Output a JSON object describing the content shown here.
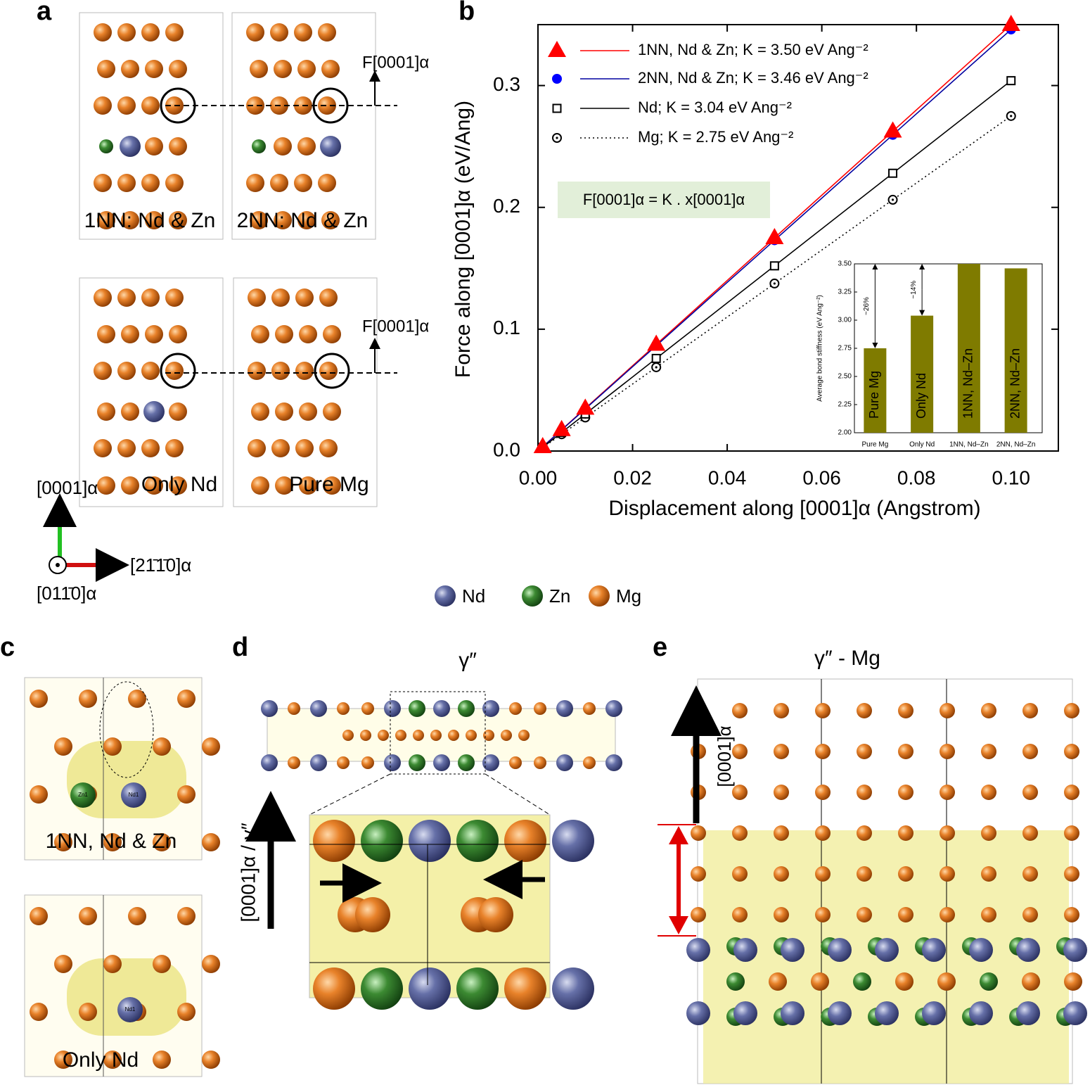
{
  "panels": {
    "a": "a",
    "b": "b",
    "c": "c",
    "d": "d",
    "e": "e"
  },
  "panel_a": {
    "boxes": [
      "1NN: Nd & Zn",
      "2NN: Nd & Zn",
      "Only Nd",
      "Pure Mg"
    ],
    "force": "F[0001]α",
    "axes": {
      "up": "[0001]α",
      "right": "[21̄1̄0]α",
      "out": "[011̄0]α"
    }
  },
  "atom_legend": [
    "Nd",
    "Zn",
    "Mg"
  ],
  "panel_c": {
    "boxes": [
      "1NN, Nd & Zn",
      "Only Nd"
    ],
    "atom_tags": [
      "Zn1",
      "Nd1",
      "Nd1"
    ]
  },
  "panel_d": {
    "title": "γ″",
    "axis": "[0001]α / γ″"
  },
  "panel_e": {
    "title": "γ″ - Mg",
    "axis": "[0001]α"
  },
  "chart_data": [
    {
      "type": "scatter",
      "x_label": "Displacement along [0001]α (Angstrom)",
      "y_label": "Force along [0001]α (eV/Ang)",
      "equation": "F[0001]α = K . x[0001]α",
      "x": [
        0.001,
        0.005,
        0.01,
        0.025,
        0.05,
        0.075,
        0.1
      ],
      "series": [
        {
          "name": "1NN, Nd & Zn; K = 3.50 eV Ang⁻²",
          "color": "#ff0000",
          "marker": "triangle",
          "line_color": "#ff0000",
          "dash": "solid",
          "values": [
            0.0035,
            0.0175,
            0.035,
            0.0875,
            0.175,
            0.2625,
            0.35
          ]
        },
        {
          "name": "2NN, Nd & Zn; K = 3.46 eV Ang⁻²",
          "color": "#0000ff",
          "marker": "circle",
          "line_color": "#0000a0",
          "dash": "solid",
          "values": [
            0.0035,
            0.0173,
            0.0346,
            0.0865,
            0.173,
            0.2595,
            0.346
          ]
        },
        {
          "name": "Nd; K = 3.04 eV Ang⁻²",
          "color": "#000000",
          "marker": "square",
          "line_color": "#000000",
          "dash": "solid",
          "values": [
            0.003,
            0.0152,
            0.0304,
            0.076,
            0.152,
            0.228,
            0.304
          ]
        },
        {
          "name": "Mg; K = 2.75 eV Ang⁻²",
          "color": "#000000",
          "marker": "dotcircle",
          "line_color": "#000000",
          "dash": "dotted",
          "values": [
            0.00275,
            0.01375,
            0.0275,
            0.06875,
            0.1375,
            0.20625,
            0.275
          ]
        }
      ],
      "xlim": [
        0,
        0.11
      ],
      "ylim": [
        0,
        0.35
      ],
      "xticks": [
        {
          "value": 0,
          "label": "0.00"
        },
        {
          "value": 0.02,
          "label": "0.02"
        },
        {
          "value": 0.04,
          "label": "0.04"
        },
        {
          "value": 0.06,
          "label": "0.06"
        },
        {
          "value": 0.08,
          "label": "0.08"
        },
        {
          "value": 0.1,
          "label": "0.10"
        }
      ],
      "yticks": [
        {
          "value": 0,
          "label": "0.0"
        },
        0.1,
        0.2,
        0.3
      ],
      "legend": "upper-left",
      "grid": false
    },
    {
      "type": "bar",
      "y_label": "Average bond stiffness (eV Ang⁻²)",
      "categories": [
        "Pure Mg",
        "Only Nd",
        "1NN, Nd–Zn",
        "2NN, Nd–Zn"
      ],
      "values": [
        2.75,
        3.04,
        3.5,
        3.46
      ],
      "color": "#7f7b00",
      "ylim": [
        2.0,
        3.5
      ],
      "yticks": [
        {
          "value": 2.0,
          "label": "2.00"
        },
        2.25,
        {
          "value": 2.5,
          "label": "2.50"
        },
        2.75,
        {
          "value": 3.0,
          "label": "3.00"
        },
        3.25,
        {
          "value": 3.5,
          "label": "3.50"
        }
      ],
      "annotations": [
        "~26%",
        "~14%"
      ]
    }
  ]
}
